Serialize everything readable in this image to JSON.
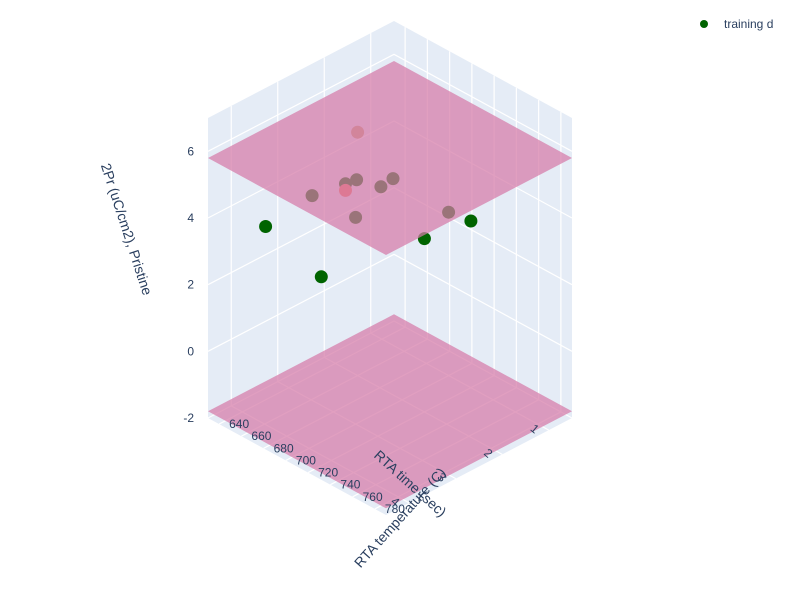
{
  "chart_data": {
    "type": "scatter3d",
    "axes": {
      "x": {
        "title": "RTA temperature (C)",
        "ticks": [
          640,
          660,
          680,
          700,
          720,
          740,
          760,
          780
        ],
        "range": [
          630,
          790
        ]
      },
      "y": {
        "title": "RTA time (sec)",
        "ticks": [
          1,
          2,
          3,
          4
        ],
        "range": [
          0.5,
          4.5
        ]
      },
      "z": {
        "title": "2Pr (uC/cm2), Pristine",
        "ticks": [
          -2,
          0,
          2,
          4,
          6
        ],
        "range": [
          -2,
          7
        ]
      }
    },
    "legend": {
      "entries": [
        "training d"
      ],
      "placement": "top-right"
    },
    "series": [
      {
        "name": "training d",
        "color": "#006400",
        "points": [
          {
            "temp": 650,
            "time": 1.0,
            "z": 3.0
          },
          {
            "temp": 660,
            "time": 1.5,
            "z": 3.3
          },
          {
            "temp": 700,
            "time": 1.0,
            "z": 2.9
          },
          {
            "temp": 720,
            "time": 1.0,
            "z": 3.0
          },
          {
            "temp": 640,
            "time": 2.5,
            "z": 3.4
          },
          {
            "temp": 640,
            "time": 3.5,
            "z": 3.2
          },
          {
            "temp": 690,
            "time": 3.5,
            "z": 2.6
          },
          {
            "temp": 700,
            "time": 3.0,
            "z": 4.2
          },
          {
            "temp": 680,
            "time": 2.5,
            "z": 4.6
          },
          {
            "temp": 670,
            "time": 2.5,
            "z": 4.3
          },
          {
            "temp": 720,
            "time": 2.0,
            "z": 3.2
          }
        ]
      },
      {
        "name": "",
        "color": "#f07860",
        "points": [
          {
            "temp": 670,
            "time": 2.5,
            "z": 4.1
          }
        ]
      },
      {
        "name": "",
        "color": "#c8a07a",
        "points": [
          {
            "temp": 660,
            "time": 2.0,
            "z": 5.3
          }
        ]
      }
    ],
    "planes": [
      {
        "z": 5.8,
        "color": "#d67aa8"
      },
      {
        "z": -1.8,
        "color": "#d67aa8"
      }
    ]
  }
}
